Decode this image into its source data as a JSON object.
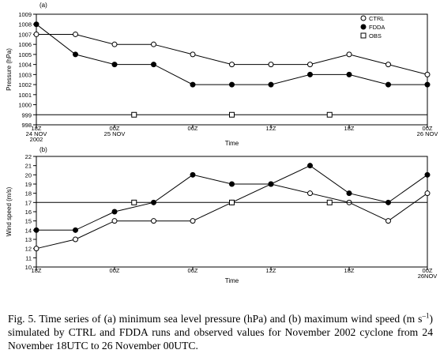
{
  "chart_data": [
    {
      "type": "line",
      "panel_label": "(a)",
      "xlabel": "Time",
      "ylabel": "Pressure (hPa)",
      "ylim": [
        998,
        1009
      ],
      "yticks": [
        998,
        999,
        1000,
        1001,
        1002,
        1003,
        1004,
        1005,
        1006,
        1007,
        1008,
        1009
      ],
      "xlim": [
        0,
        30
      ],
      "x_ticks": [
        {
          "x": 0,
          "lines": [
            "18Z",
            "24 NOV",
            "2002"
          ]
        },
        {
          "x": 6,
          "lines": [
            "00Z",
            "25 NOV"
          ]
        },
        {
          "x": 12,
          "lines": [
            "06Z"
          ]
        },
        {
          "x": 18,
          "lines": [
            "12Z"
          ]
        },
        {
          "x": 24,
          "lines": [
            "18Z"
          ]
        },
        {
          "x": 30,
          "lines": [
            "00Z",
            "26 NOV"
          ]
        }
      ],
      "legend_position": "top-right",
      "series": [
        {
          "name": "CTRL",
          "marker": "open-circle",
          "x": [
            0,
            3,
            6,
            9,
            12,
            15,
            18,
            21,
            24,
            27,
            30
          ],
          "values": [
            1007,
            1007,
            1006,
            1006,
            1005,
            1004,
            1004,
            1004,
            1005,
            1004,
            1003
          ]
        },
        {
          "name": "FDDA",
          "marker": "filled-circle",
          "x": [
            0,
            3,
            6,
            9,
            12,
            15,
            18,
            21,
            24,
            27,
            30
          ],
          "values": [
            1008,
            1005,
            1004,
            1004,
            1002,
            1002,
            1002,
            1003,
            1003,
            1002,
            1002
          ]
        },
        {
          "name": "OBS",
          "marker": "open-square",
          "x": [
            0,
            7.5,
            15,
            22.5,
            30
          ],
          "values": [
            999,
            999,
            999,
            999,
            999
          ],
          "marker_x": [
            7.5,
            15,
            22.5
          ]
        }
      ]
    },
    {
      "type": "line",
      "panel_label": "(b)",
      "xlabel": "Time",
      "ylabel": "Wind speed (m/s)",
      "ylim": [
        10,
        22
      ],
      "yticks": [
        10,
        11,
        12,
        13,
        14,
        15,
        16,
        17,
        18,
        19,
        20,
        21,
        22
      ],
      "xlim": [
        0,
        30
      ],
      "x_ticks": [
        {
          "x": 0,
          "lines": [
            "18Z"
          ]
        },
        {
          "x": 6,
          "lines": [
            "00Z"
          ]
        },
        {
          "x": 12,
          "lines": [
            "06Z"
          ]
        },
        {
          "x": 18,
          "lines": [
            "12Z"
          ]
        },
        {
          "x": 24,
          "lines": [
            "18Z"
          ]
        },
        {
          "x": 30,
          "lines": [
            "00Z",
            "26NOV"
          ]
        }
      ],
      "series": [
        {
          "name": "CTRL",
          "marker": "open-circle",
          "x": [
            0,
            3,
            6,
            9,
            12,
            15,
            18,
            21,
            24,
            27,
            30
          ],
          "values": [
            12,
            13,
            15,
            15,
            15,
            17,
            19,
            18,
            17,
            15,
            18
          ]
        },
        {
          "name": "FDDA",
          "marker": "filled-circle",
          "x": [
            0,
            3,
            6,
            9,
            12,
            15,
            18,
            21,
            24,
            27,
            30
          ],
          "values": [
            14,
            14,
            16,
            17,
            20,
            19,
            19,
            21,
            18,
            17,
            20
          ]
        },
        {
          "name": "OBS",
          "marker": "open-square",
          "x": [
            0,
            7.5,
            15,
            22.5,
            30
          ],
          "values": [
            17,
            17,
            17,
            17,
            17
          ],
          "marker_x": [
            7.5,
            15,
            22.5
          ]
        }
      ]
    }
  ],
  "caption": {
    "part1": "Fig. 5. Time series of (a) minimum sea level pressure (hPa) and (b) maximum wind speed (m s",
    "sup": "–1",
    "part2": ") simulated by CTRL and FDDA runs and observed values for November 2002 cyclone from 24 November 18UTC to 26 November 00UTC."
  }
}
